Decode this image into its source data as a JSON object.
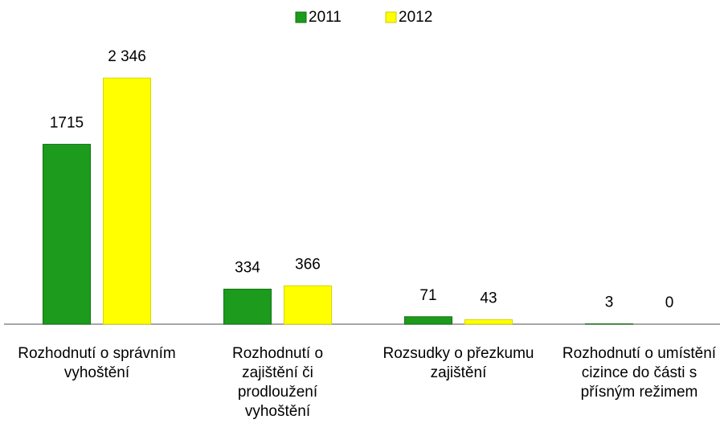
{
  "chart_data": {
    "type": "bar",
    "categories": [
      "Rozhodnutí o správním vyhoštění",
      "Rozhodnutí o zajištění či prodloužení vyhoštění",
      "Rozsudky o přezkumu zajištění",
      "Rozhodnutí o umístění cizince do části s přísným režimem"
    ],
    "series": [
      {
        "name": "2011",
        "color": "#1c9b1c",
        "values": [
          1715,
          334,
          71,
          3
        ]
      },
      {
        "name": "2012",
        "color": "#ffff00",
        "values": [
          2346,
          366,
          43,
          0
        ],
        "value_labels": [
          "2 346",
          "366",
          "43",
          "0"
        ]
      }
    ],
    "ylim": [
      0,
      2500
    ],
    "legend": "top"
  }
}
